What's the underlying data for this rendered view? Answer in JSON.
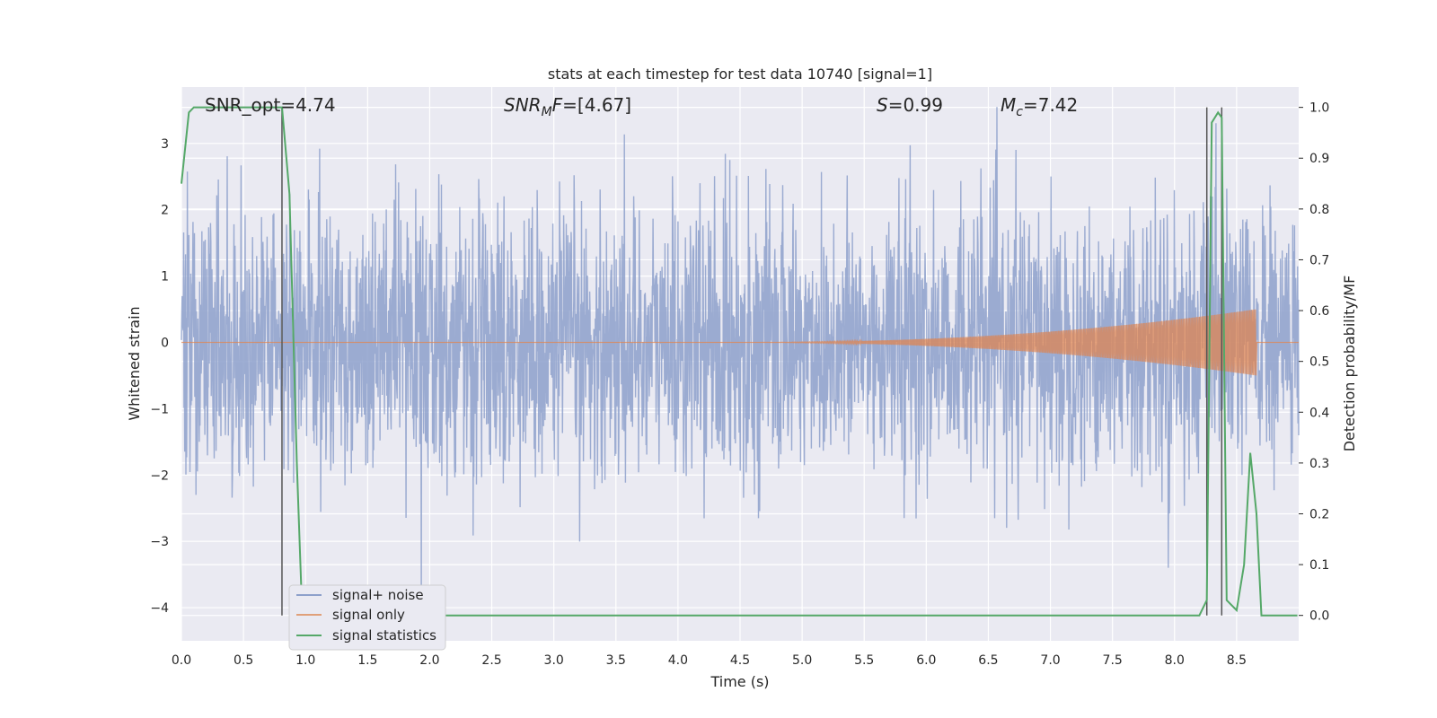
{
  "chart_data": {
    "type": "line",
    "title": "stats at each timestep for test data 10740 [signal=1]",
    "xlabel": "Time (s)",
    "ylabel_left": "Whitened strain",
    "ylabel_right": "Detection probability/MF",
    "xlim": [
      0.0,
      9.0
    ],
    "ylim_left": [
      -4.5,
      3.85
    ],
    "ylim_right": [
      -0.05,
      1.04
    ],
    "x_ticks": [
      "0.0",
      "0.5",
      "1.0",
      "1.5",
      "2.0",
      "2.5",
      "3.0",
      "3.5",
      "4.0",
      "4.5",
      "5.0",
      "5.5",
      "6.0",
      "6.5",
      "7.0",
      "7.5",
      "8.0",
      "8.5"
    ],
    "y_ticks_left": [
      "3",
      "2",
      "1",
      "0",
      "−1",
      "−2",
      "−3",
      "−4"
    ],
    "y_ticks_right": [
      "1.0",
      "0.9",
      "0.8",
      "0.7",
      "0.6",
      "0.5",
      "0.4",
      "0.3",
      "0.2",
      "0.1",
      "0.0"
    ],
    "grid": true,
    "legend_position": "lower-left",
    "annotations": {
      "snr_opt": "SNR_opt=4.74",
      "snr_mf": "=[4.67]",
      "s": "=0.99",
      "mc": "=7.42"
    },
    "vlines_x": [
      0.81,
      8.26,
      8.38
    ],
    "series": [
      {
        "name": "signal+ noise",
        "color": "#8da0cb",
        "noise_amplitude_range": [
          -4.0,
          3.55
        ],
        "description_values": "dense whitened noise, |strain| mostly below 2.6"
      },
      {
        "name": "signal only",
        "color": "#e0a07a",
        "chirp_start_x": 4.5,
        "chirp_end_x": 8.66,
        "chirp_peak_amplitude": 0.5
      },
      {
        "name": "signal statistics",
        "color": "#55a868",
        "x": [
          0.0,
          0.06,
          0.1,
          0.2,
          0.3,
          0.4,
          0.5,
          0.6,
          0.7,
          0.81,
          0.87,
          0.93,
          0.97,
          1.0,
          2.0,
          3.0,
          4.0,
          5.0,
          6.0,
          7.0,
          8.0,
          8.2,
          8.26,
          8.3,
          8.35,
          8.38,
          8.42,
          8.5,
          8.56,
          8.61,
          8.66,
          8.7,
          8.8,
          8.99
        ],
        "y": [
          0.85,
          0.99,
          1.0,
          1.0,
          1.0,
          1.0,
          1.0,
          1.0,
          1.0,
          1.0,
          0.83,
          0.3,
          0.02,
          0.0,
          0.0,
          0.0,
          0.0,
          0.0,
          0.0,
          0.0,
          0.0,
          0.0,
          0.03,
          0.97,
          0.99,
          0.98,
          0.03,
          0.01,
          0.1,
          0.32,
          0.2,
          0.0,
          0.0,
          0.0
        ]
      }
    ]
  },
  "legend": {
    "noise_label": "signal+ noise",
    "signal_label": "signal only",
    "stats_label": "signal statistics"
  }
}
